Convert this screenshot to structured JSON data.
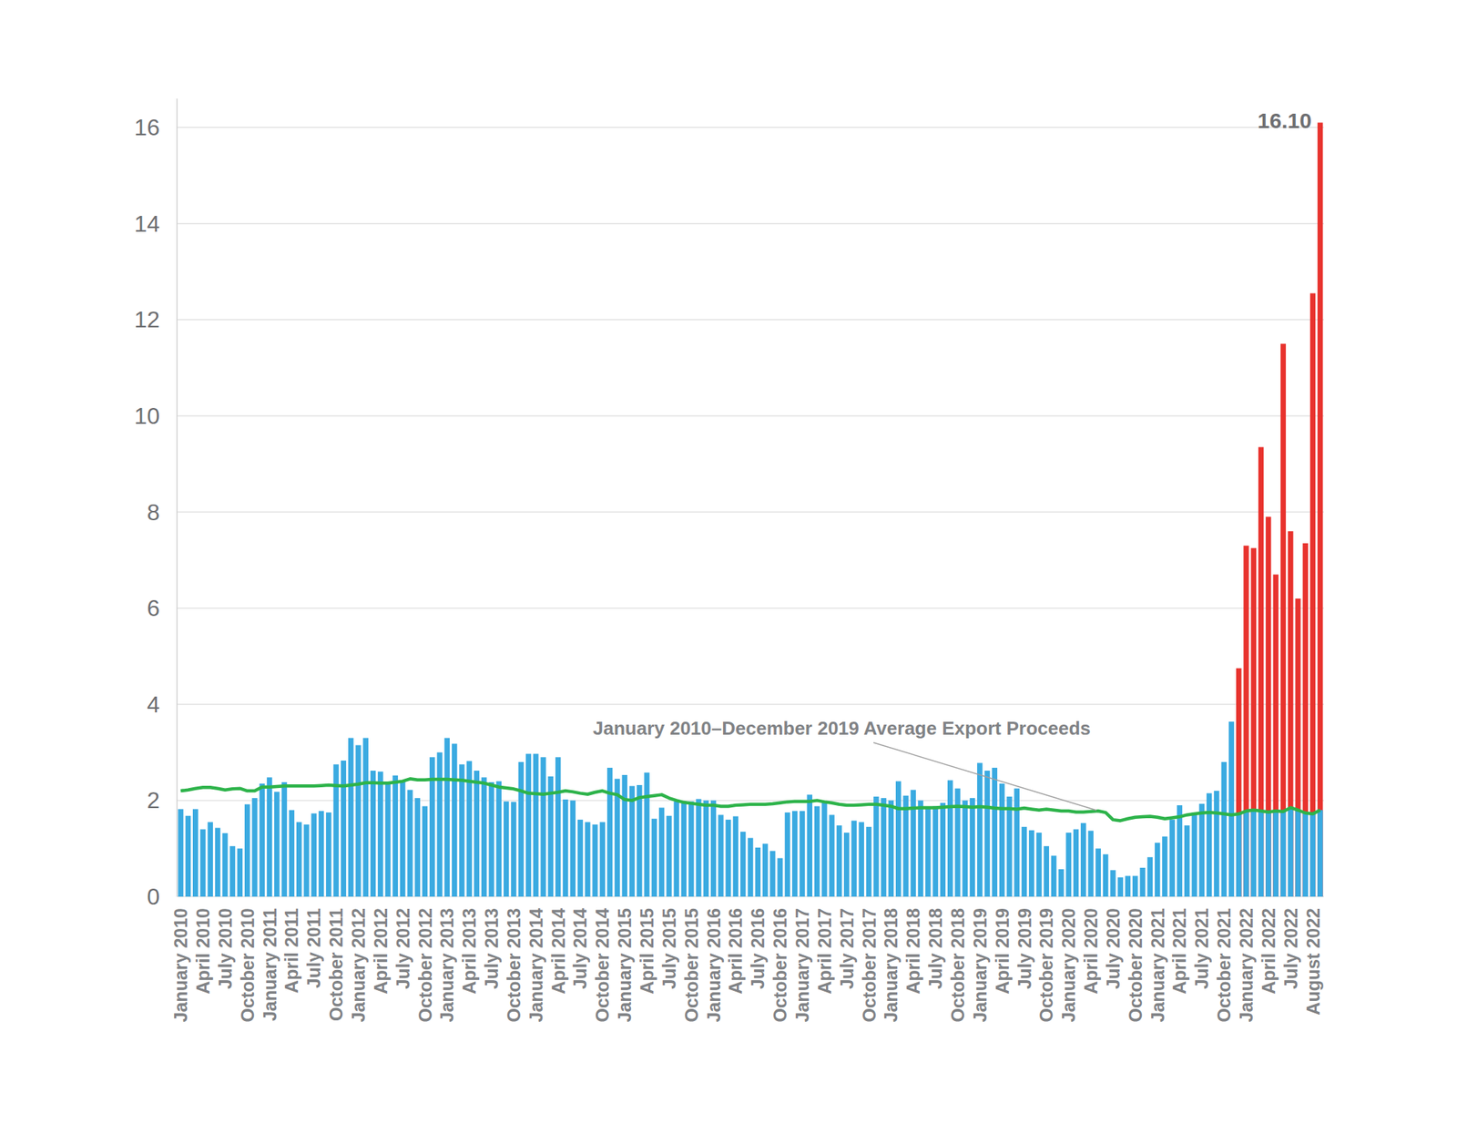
{
  "chart_data": {
    "type": "bar",
    "categories": [
      "January 2010",
      null,
      null,
      "April 2010",
      null,
      null,
      "July 2010",
      null,
      null,
      "October 2010",
      null,
      null,
      "January 2011",
      null,
      null,
      "April 2011",
      null,
      null,
      "July 2011",
      null,
      null,
      "October 2011",
      null,
      null,
      "January 2012",
      null,
      null,
      "April 2012",
      null,
      null,
      "July 2012",
      null,
      null,
      "October 2012",
      null,
      null,
      "January 2013",
      null,
      null,
      "April 2013",
      null,
      null,
      "July 2013",
      null,
      null,
      "October 2013",
      null,
      null,
      "January 2014",
      null,
      null,
      "April 2014",
      null,
      null,
      "July 2014",
      null,
      null,
      "October 2014",
      null,
      null,
      "January 2015",
      null,
      null,
      "April 2015",
      null,
      null,
      "July 2015",
      null,
      null,
      "October 2015",
      null,
      null,
      "January 2016",
      null,
      null,
      "April 2016",
      null,
      null,
      "July 2016",
      null,
      null,
      "October 2016",
      null,
      null,
      "January 2017",
      null,
      null,
      "April 2017",
      null,
      null,
      "July 2017",
      null,
      null,
      "October 2017",
      null,
      null,
      "January 2018",
      null,
      null,
      "April 2018",
      null,
      null,
      "July 2018",
      null,
      null,
      "October 2018",
      null,
      null,
      "January 2019",
      null,
      null,
      "April 2019",
      null,
      null,
      "July 2019",
      null,
      null,
      "October 2019",
      null,
      null,
      "January 2020",
      null,
      null,
      "April 2020",
      null,
      null,
      "July 2020",
      null,
      null,
      "October 2020",
      null,
      null,
      "January 2021",
      null,
      null,
      "April 2021",
      null,
      null,
      "July 2021",
      null,
      null,
      "October 2021",
      null,
      null,
      "January 2022",
      null,
      null,
      "April 2022",
      null,
      null,
      "July 2022",
      null,
      null,
      "August 2022",
      null
    ],
    "series": [
      {
        "type": "bar",
        "color": "#3aaae1",
        "colors": [
          "#3aaae1",
          "#3aaae1",
          "#3aaae1",
          "#3aaae1",
          "#3aaae1",
          "#3aaae1",
          "#3aaae1",
          "#3aaae1",
          "#3aaae1",
          "#3aaae1",
          "#3aaae1",
          "#3aaae1",
          "#3aaae1",
          "#3aaae1",
          "#3aaae1",
          "#3aaae1",
          "#3aaae1",
          "#3aaae1",
          "#3aaae1",
          "#3aaae1",
          "#3aaae1",
          "#3aaae1",
          "#3aaae1",
          "#3aaae1",
          "#3aaae1",
          "#3aaae1",
          "#3aaae1",
          "#3aaae1",
          "#3aaae1",
          "#3aaae1",
          "#3aaae1",
          "#3aaae1",
          "#3aaae1",
          "#3aaae1",
          "#3aaae1",
          "#3aaae1",
          "#3aaae1",
          "#3aaae1",
          "#3aaae1",
          "#3aaae1",
          "#3aaae1",
          "#3aaae1",
          "#3aaae1",
          "#3aaae1",
          "#3aaae1",
          "#3aaae1",
          "#3aaae1",
          "#3aaae1",
          "#3aaae1",
          "#3aaae1",
          "#3aaae1",
          "#3aaae1",
          "#3aaae1",
          "#3aaae1",
          "#3aaae1",
          "#3aaae1",
          "#3aaae1",
          "#3aaae1",
          "#3aaae1",
          "#3aaae1",
          "#3aaae1",
          "#3aaae1",
          "#3aaae1",
          "#3aaae1",
          "#3aaae1",
          "#3aaae1",
          "#3aaae1",
          "#3aaae1",
          "#3aaae1",
          "#3aaae1",
          "#3aaae1",
          "#3aaae1",
          "#3aaae1",
          "#3aaae1",
          "#3aaae1",
          "#3aaae1",
          "#3aaae1",
          "#3aaae1",
          "#3aaae1",
          "#3aaae1",
          "#3aaae1",
          "#3aaae1",
          "#3aaae1",
          "#3aaae1",
          "#3aaae1",
          "#3aaae1",
          "#3aaae1",
          "#3aaae1",
          "#3aaae1",
          "#3aaae1",
          "#3aaae1",
          "#3aaae1",
          "#3aaae1",
          "#3aaae1",
          "#3aaae1",
          "#3aaae1",
          "#3aaae1",
          "#3aaae1",
          "#3aaae1",
          "#3aaae1",
          "#3aaae1",
          "#3aaae1",
          "#3aaae1",
          "#3aaae1",
          "#3aaae1",
          "#3aaae1",
          "#3aaae1",
          "#3aaae1",
          "#3aaae1",
          "#3aaae1",
          "#3aaae1",
          "#3aaae1",
          "#3aaae1",
          "#3aaae1",
          "#3aaae1",
          "#3aaae1",
          "#3aaae1",
          "#3aaae1",
          "#3aaae1",
          "#3aaae1",
          "#3aaae1",
          "#3aaae1",
          "#3aaae1",
          "#3aaae1",
          "#3aaae1",
          "#3aaae1",
          "#3aaae1",
          "#3aaae1",
          "#3aaae1",
          "#3aaae1",
          "#3aaae1",
          "#3aaae1",
          "#3aaae1",
          "#3aaae1",
          "#3aaae1",
          "#3aaae1",
          "#3aaae1",
          "#3aaae1",
          "#3aaae1",
          "#3aaae1",
          "#3aaae1",
          "#3aaae1",
          "#3aaae1",
          "#e8322d",
          "#e8322d",
          "#e8322d",
          "#e8322d",
          "#e8322d",
          "#e8322d",
          "#e8322d",
          "#e8322d",
          "#e8322d",
          "#e8322d",
          "#e8322d",
          "#e8322d"
        ],
        "values": [
          1.82,
          1.68,
          1.82,
          1.4,
          1.55,
          1.43,
          1.32,
          1.05,
          1.0,
          1.92,
          2.05,
          2.35,
          2.48,
          2.18,
          2.38,
          1.8,
          1.55,
          1.5,
          1.73,
          1.78,
          1.75,
          2.75,
          2.83,
          3.3,
          3.15,
          3.3,
          2.62,
          2.6,
          2.35,
          2.52,
          2.4,
          2.22,
          2.05,
          1.88,
          2.9,
          3.0,
          3.3,
          3.18,
          2.75,
          2.82,
          2.62,
          2.48,
          2.38,
          2.4,
          1.98,
          1.97,
          2.8,
          2.97,
          2.97,
          2.9,
          2.5,
          2.9,
          2.02,
          2.0,
          1.6,
          1.55,
          1.5,
          1.55,
          2.68,
          2.45,
          2.53,
          2.3,
          2.32,
          2.58,
          1.62,
          1.85,
          1.68,
          1.98,
          1.95,
          1.98,
          2.03,
          2.0,
          2.0,
          1.7,
          1.6,
          1.67,
          1.35,
          1.22,
          1.02,
          1.1,
          0.95,
          0.8,
          1.75,
          1.78,
          1.78,
          2.12,
          1.88,
          1.95,
          1.7,
          1.48,
          1.33,
          1.58,
          1.55,
          1.45,
          2.08,
          2.05,
          2.0,
          2.4,
          2.1,
          2.22,
          2.0,
          1.85,
          1.88,
          1.95,
          2.42,
          2.25,
          2.0,
          2.05,
          2.78,
          2.62,
          2.68,
          2.35,
          2.08,
          2.25,
          1.45,
          1.38,
          1.33,
          1.05,
          0.85,
          0.57,
          1.33,
          1.4,
          1.53,
          1.37,
          1.0,
          0.88,
          0.55,
          0.4,
          0.43,
          0.43,
          0.6,
          0.82,
          1.12,
          1.25,
          1.6,
          1.9,
          1.48,
          1.75,
          1.93,
          2.15,
          2.2,
          2.8,
          3.64,
          4.75,
          7.3,
          7.25,
          9.35,
          7.9,
          6.7,
          11.5,
          7.6,
          6.2,
          7.35,
          12.55,
          16.1
        ],
        "value_labels": [
          null,
          null,
          null,
          null,
          null,
          null,
          null,
          null,
          null,
          null,
          null,
          null,
          null,
          null,
          null,
          null,
          null,
          null,
          null,
          null,
          null,
          null,
          null,
          null,
          null,
          null,
          null,
          null,
          null,
          null,
          null,
          null,
          null,
          null,
          null,
          null,
          null,
          null,
          null,
          null,
          null,
          null,
          null,
          null,
          null,
          null,
          null,
          null,
          null,
          null,
          null,
          null,
          null,
          null,
          null,
          null,
          null,
          null,
          null,
          null,
          null,
          null,
          null,
          null,
          null,
          null,
          null,
          null,
          null,
          null,
          null,
          null,
          null,
          null,
          null,
          null,
          null,
          null,
          null,
          null,
          null,
          null,
          null,
          null,
          null,
          null,
          null,
          null,
          null,
          null,
          null,
          null,
          null,
          null,
          null,
          null,
          null,
          null,
          null,
          null,
          null,
          null,
          null,
          null,
          null,
          null,
          null,
          null,
          null,
          null,
          null,
          null,
          null,
          null,
          null,
          null,
          null,
          null,
          null,
          null,
          null,
          null,
          null,
          null,
          null,
          null,
          null,
          null,
          null,
          null,
          null,
          null,
          null,
          null,
          null,
          null,
          null,
          null,
          null,
          null,
          null,
          null,
          null,
          null,
          null,
          null,
          null,
          null,
          null,
          null,
          null,
          null,
          null,
          null,
          "16.10"
        ]
      },
      {
        "name": "January 2010–December 2019 Average Export Proceeds",
        "type": "line",
        "color": "#2db34a",
        "values": [
          2.2,
          2.22,
          2.25,
          2.27,
          2.27,
          2.25,
          2.22,
          2.24,
          2.25,
          2.2,
          2.2,
          2.28,
          2.28,
          2.29,
          2.3,
          2.3,
          2.3,
          2.3,
          2.3,
          2.31,
          2.32,
          2.31,
          2.3,
          2.32,
          2.34,
          2.37,
          2.37,
          2.36,
          2.36,
          2.38,
          2.4,
          2.45,
          2.43,
          2.43,
          2.44,
          2.44,
          2.44,
          2.43,
          2.42,
          2.4,
          2.38,
          2.36,
          2.32,
          2.28,
          2.26,
          2.24,
          2.2,
          2.15,
          2.14,
          2.13,
          2.15,
          2.17,
          2.2,
          2.18,
          2.15,
          2.13,
          2.17,
          2.2,
          2.15,
          2.12,
          2.02,
          2.0,
          2.06,
          2.08,
          2.1,
          2.12,
          2.05,
          2.0,
          1.96,
          1.94,
          1.92,
          1.9,
          1.9,
          1.88,
          1.88,
          1.9,
          1.91,
          1.92,
          1.92,
          1.92,
          1.93,
          1.95,
          1.97,
          1.98,
          1.98,
          1.98,
          2.0,
          1.97,
          1.95,
          1.92,
          1.9,
          1.9,
          1.91,
          1.92,
          1.92,
          1.9,
          1.88,
          1.83,
          1.83,
          1.84,
          1.85,
          1.85,
          1.85,
          1.86,
          1.87,
          1.88,
          1.87,
          1.86,
          1.87,
          1.86,
          1.84,
          1.83,
          1.83,
          1.82,
          1.84,
          1.82,
          1.8,
          1.82,
          1.8,
          1.78,
          1.78,
          1.76,
          1.76,
          1.77,
          1.78,
          1.75,
          1.6,
          1.58,
          1.62,
          1.65,
          1.66,
          1.67,
          1.65,
          1.62,
          1.64,
          1.66,
          1.7,
          1.72,
          1.74,
          1.75,
          1.74,
          1.72,
          1.7,
          1.72,
          1.78,
          1.8,
          1.78,
          1.76,
          1.78,
          1.77,
          1.85,
          1.8,
          1.74,
          1.72,
          1.8
        ]
      }
    ],
    "ylim": [
      0,
      16.6
    ],
    "yticks": [
      0,
      2,
      4,
      6,
      8,
      10,
      12,
      14,
      16
    ],
    "grid": true
  }
}
